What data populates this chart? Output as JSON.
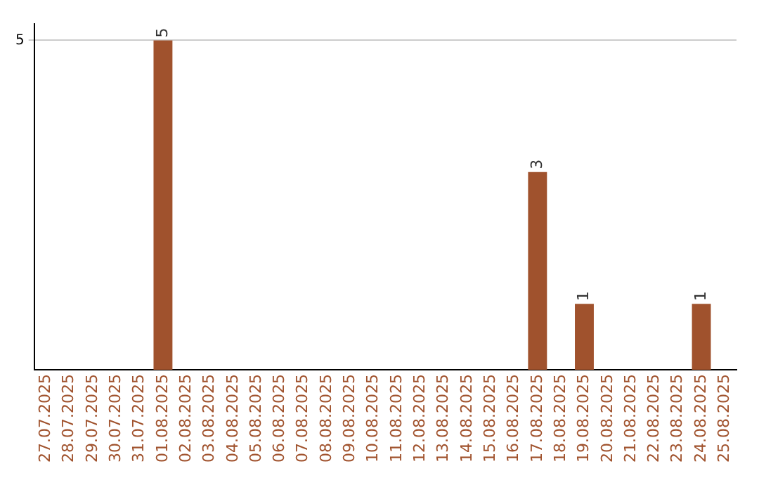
{
  "chart_data": {
    "type": "bar",
    "categories": [
      "27.07.2025",
      "28.07.2025",
      "29.07.2025",
      "30.07.2025",
      "31.07.2025",
      "01.08.2025",
      "02.08.2025",
      "03.08.2025",
      "04.08.2025",
      "05.08.2025",
      "06.08.2025",
      "07.08.2025",
      "08.08.2025",
      "09.08.2025",
      "10.08.2025",
      "11.08.2025",
      "12.08.2025",
      "13.08.2025",
      "14.08.2025",
      "15.08.2025",
      "16.08.2025",
      "17.08.2025",
      "18.08.2025",
      "19.08.2025",
      "20.08.2025",
      "21.08.2025",
      "22.08.2025",
      "23.08.2025",
      "24.08.2025",
      "25.08.2025"
    ],
    "values": [
      0,
      0,
      0,
      0,
      0,
      5,
      0,
      0,
      0,
      0,
      0,
      0,
      0,
      0,
      0,
      0,
      0,
      0,
      0,
      0,
      0,
      3,
      0,
      1,
      0,
      0,
      0,
      0,
      1,
      0
    ],
    "value_labels": [
      null,
      null,
      null,
      null,
      null,
      "5",
      null,
      null,
      null,
      null,
      null,
      null,
      null,
      null,
      null,
      null,
      null,
      null,
      null,
      null,
      null,
      "3",
      null,
      "1",
      null,
      null,
      null,
      null,
      "1",
      null
    ],
    "color": "#a0522d",
    "ylim": [
      0,
      5.25
    ],
    "yticks": [
      5
    ],
    "grid": "y",
    "legend": false
  }
}
